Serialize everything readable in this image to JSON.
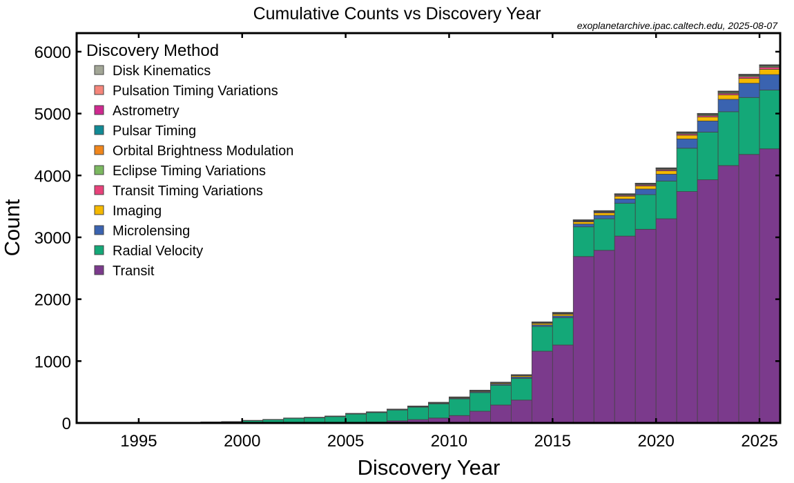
{
  "chart_data": {
    "type": "bar",
    "stacked": true,
    "title": "Cumulative Counts vs Discovery Year",
    "source_note": "exoplanetarchive.ipac.caltech.edu, 2025-08-07",
    "xlabel": "Discovery Year",
    "ylabel": "Count",
    "xlim": [
      1992,
      2026
    ],
    "ylim": [
      0,
      6300
    ],
    "x_ticks": [
      1995,
      2000,
      2005,
      2010,
      2015,
      2020,
      2025
    ],
    "y_ticks": [
      0,
      1000,
      2000,
      3000,
      4000,
      5000,
      6000
    ],
    "grid": false,
    "legend_title": "Discovery Method",
    "legend_position": "top-left",
    "years": [
      1992,
      1993,
      1994,
      1995,
      1996,
      1997,
      1998,
      1999,
      2000,
      2001,
      2002,
      2003,
      2004,
      2005,
      2006,
      2007,
      2008,
      2009,
      2010,
      2011,
      2012,
      2013,
      2014,
      2015,
      2016,
      2017,
      2018,
      2019,
      2020,
      2021,
      2022,
      2023,
      2024,
      2025
    ],
    "series": [
      {
        "name": "Transit",
        "color": "#7b3a8c",
        "values": [
          0,
          0,
          0,
          0,
          0,
          0,
          0,
          0,
          0,
          0,
          1,
          2,
          5,
          10,
          15,
          35,
          55,
          80,
          120,
          190,
          290,
          370,
          1160,
          1260,
          2690,
          2790,
          3020,
          3130,
          3300,
          3740,
          3930,
          4160,
          4340,
          4430
        ]
      },
      {
        "name": "Radial Velocity",
        "color": "#14a878",
        "values": [
          0,
          0,
          0,
          1,
          7,
          9,
          14,
          20,
          40,
          55,
          77,
          86,
          101,
          136,
          155,
          175,
          200,
          230,
          270,
          300,
          320,
          350,
          400,
          440,
          480,
          510,
          530,
          560,
          610,
          700,
          770,
          870,
          920,
          950
        ]
      },
      {
        "name": "Microlensing",
        "color": "#3a63b0",
        "values": [
          0,
          0,
          0,
          0,
          0,
          0,
          0,
          0,
          0,
          0,
          0,
          1,
          2,
          4,
          4,
          5,
          7,
          8,
          11,
          14,
          18,
          22,
          25,
          30,
          45,
          55,
          70,
          90,
          110,
          150,
          180,
          200,
          230,
          250
        ]
      },
      {
        "name": "Imaging",
        "color": "#f5b800",
        "values": [
          0,
          0,
          0,
          0,
          0,
          0,
          0,
          0,
          0,
          0,
          0,
          0,
          1,
          2,
          3,
          5,
          7,
          9,
          11,
          14,
          17,
          20,
          24,
          28,
          35,
          40,
          45,
          50,
          55,
          60,
          65,
          72,
          78,
          85
        ]
      },
      {
        "name": "Transit Timing Variations",
        "color": "#e8427a",
        "values": [
          0,
          0,
          0,
          0,
          0,
          0,
          0,
          0,
          0,
          0,
          0,
          0,
          0,
          0,
          0,
          0,
          0,
          0,
          0,
          1,
          2,
          4,
          6,
          8,
          10,
          12,
          14,
          16,
          18,
          20,
          22,
          24,
          28,
          32
        ]
      },
      {
        "name": "Eclipse Timing Variations",
        "color": "#7bb860",
        "values": [
          0,
          0,
          0,
          0,
          0,
          0,
          0,
          0,
          0,
          0,
          0,
          0,
          0,
          0,
          0,
          0,
          1,
          2,
          3,
          4,
          5,
          6,
          7,
          8,
          9,
          10,
          11,
          12,
          13,
          14,
          15,
          16,
          16,
          17
        ]
      },
      {
        "name": "Orbital Brightness Modulation",
        "color": "#f0861b",
        "values": [
          0,
          0,
          0,
          0,
          0,
          0,
          0,
          0,
          0,
          0,
          0,
          0,
          0,
          0,
          0,
          0,
          0,
          0,
          0,
          1,
          2,
          3,
          4,
          5,
          6,
          6,
          6,
          7,
          7,
          8,
          9,
          9,
          9,
          9
        ]
      },
      {
        "name": "Pulsar Timing",
        "color": "#118a95",
        "values": [
          2,
          2,
          3,
          3,
          3,
          3,
          3,
          3,
          3,
          3,
          3,
          4,
          4,
          4,
          4,
          4,
          4,
          4,
          5,
          5,
          5,
          5,
          5,
          6,
          6,
          6,
          6,
          6,
          6,
          7,
          7,
          7,
          7,
          8
        ]
      },
      {
        "name": "Astrometry",
        "color": "#cf2990",
        "values": [
          0,
          0,
          0,
          0,
          0,
          0,
          0,
          0,
          0,
          0,
          0,
          0,
          0,
          0,
          0,
          0,
          0,
          0,
          0,
          0,
          0,
          0,
          1,
          1,
          1,
          1,
          1,
          1,
          1,
          2,
          2,
          3,
          4,
          5
        ]
      },
      {
        "name": "Pulsation Timing Variations",
        "color": "#f5857a",
        "values": [
          0,
          0,
          0,
          0,
          0,
          0,
          0,
          0,
          0,
          0,
          0,
          0,
          0,
          0,
          0,
          1,
          1,
          1,
          1,
          1,
          1,
          1,
          1,
          1,
          2,
          2,
          2,
          2,
          2,
          2,
          2,
          2,
          2,
          2
        ]
      },
      {
        "name": "Disk Kinematics",
        "color": "#a2a696",
        "values": [
          0,
          0,
          0,
          0,
          0,
          0,
          0,
          0,
          0,
          0,
          0,
          0,
          0,
          0,
          0,
          0,
          0,
          0,
          0,
          0,
          0,
          0,
          0,
          0,
          0,
          0,
          0,
          1,
          1,
          1,
          1,
          1,
          1,
          1
        ]
      }
    ]
  }
}
